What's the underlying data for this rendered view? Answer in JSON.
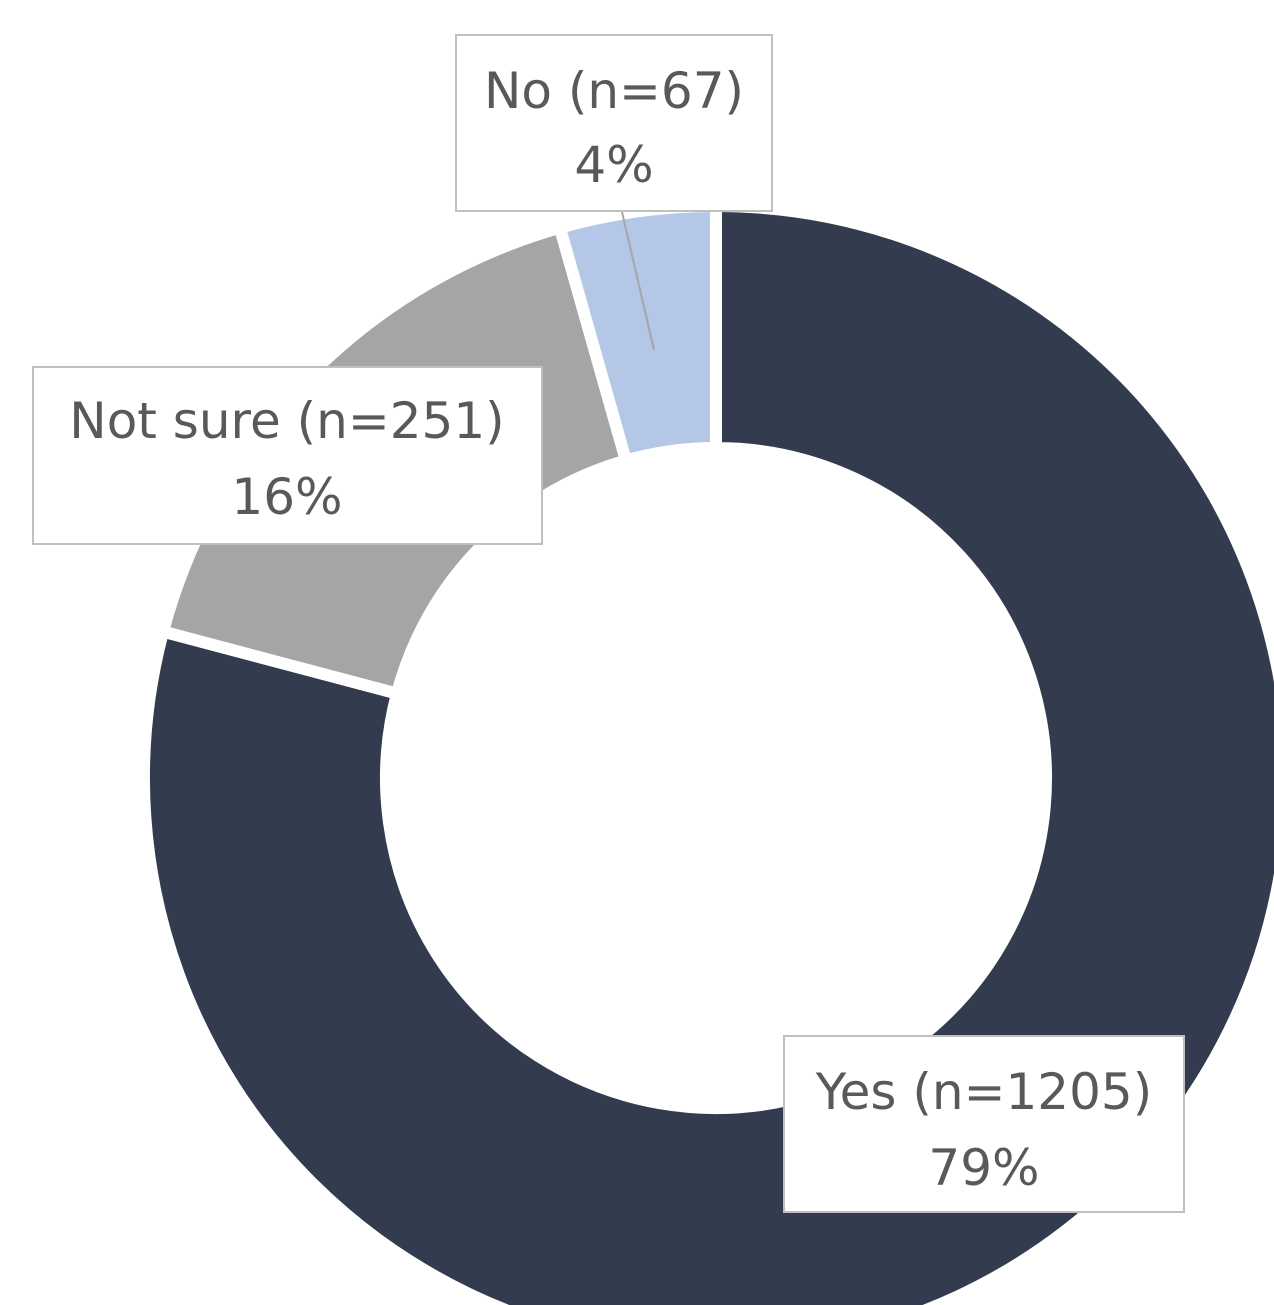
{
  "chart_data": {
    "type": "pie",
    "variant": "doughnut",
    "legend": "none",
    "slices": [
      {
        "name": "Yes",
        "count": 1205,
        "value": 79,
        "label": "Yes (n=1205)",
        "pct_label": "79%",
        "color": "#323C4E"
      },
      {
        "name": "Not sure",
        "count": 251,
        "value": 16,
        "label": "Not sure (n=251)",
        "pct_label": "16%",
        "color": "#A5A5A5"
      },
      {
        "name": "No",
        "count": 67,
        "value": 4,
        "label": "No (n=67)",
        "pct_label": "4%",
        "color": "#B4C7E7"
      }
    ]
  }
}
